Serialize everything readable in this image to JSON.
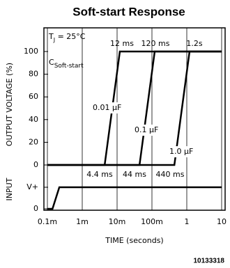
{
  "chart_data": {
    "type": "line",
    "title": "Soft-start Response",
    "xlabel": "TIME (seconds)",
    "ylabel": "OUTPUT VOLTAGE (%)",
    "xscale": "log",
    "xlim": [
      0.0001,
      10
    ],
    "xticks": [
      {
        "value": 0.0001,
        "label": "0.1m"
      },
      {
        "value": 0.001,
        "label": "1m"
      },
      {
        "value": 0.01,
        "label": "10m"
      },
      {
        "value": 0.1,
        "label": "100m"
      },
      1,
      10
    ],
    "ylim": [
      0,
      100
    ],
    "yticks": [
      0,
      20,
      40,
      60,
      80,
      100
    ],
    "grid": "x",
    "color": "#000000",
    "series": [
      {
        "name": "0.01 µF",
        "x": [
          0.0001,
          0.0044,
          0.012,
          10
        ],
        "values": [
          0,
          0,
          100,
          100
        ]
      },
      {
        "name": "0.1 µF",
        "x": [
          0.0001,
          0.044,
          0.12,
          10
        ],
        "values": [
          0,
          0,
          100,
          100
        ]
      },
      {
        "name": "1.0 µF",
        "x": [
          0.0001,
          0.44,
          1.2,
          10
        ],
        "values": [
          0,
          0,
          100,
          100
        ]
      }
    ],
    "input": {
      "ylabel": "INPUT",
      "ylim": [
        0,
        1
      ],
      "yticks": [
        0,
        {
          "value": 1,
          "label": "V+"
        }
      ],
      "x": [
        0.0001,
        0.00014,
        0.00022,
        10
      ],
      "values": [
        0,
        0,
        1,
        1
      ]
    },
    "annotations": {
      "end_times": [
        "12 ms",
        "120 ms",
        "1.2s"
      ],
      "start_times": [
        "4.4 ms",
        "44 ms",
        "440 ms"
      ],
      "temperature": {
        "symbol": "T",
        "subscript": "J",
        "text": " = 25°C"
      },
      "capacitor": {
        "symbol": "C",
        "subscript": "Soft-start"
      }
    },
    "figure_id": "10133318"
  }
}
